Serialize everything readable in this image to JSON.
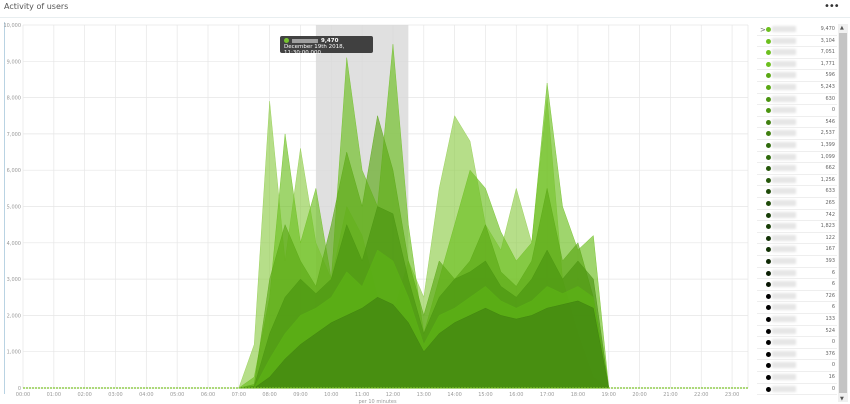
{
  "header": {
    "title": "Activity of users",
    "more_icon": "•••"
  },
  "tooltip": {
    "value": "9,470",
    "date": "December 19th 2018, 11:30:00.000",
    "color": "#6cbf1e"
  },
  "chart_data": {
    "type": "area",
    "xlabel": "per 10 minutes",
    "x_ticks": [
      "00:00",
      "01:00",
      "02:00",
      "03:00",
      "04:00",
      "05:00",
      "06:00",
      "07:00",
      "08:00",
      "09:00",
      "10:00",
      "11:00",
      "12:00",
      "13:00",
      "14:00",
      "15:00",
      "16:00",
      "17:00",
      "18:00",
      "19:00",
      "20:00",
      "21:00",
      "22:00",
      "23:00"
    ],
    "y_ticks": [
      "0",
      "1,000",
      "2,000",
      "3,000",
      "4,000",
      "5,000",
      "6,000",
      "7,000",
      "8,000",
      "9,000",
      "10,000"
    ],
    "ylim": [
      0,
      10000
    ],
    "grid": true,
    "selection": [
      "09:30",
      "12:30"
    ],
    "x": [
      "07:00",
      "07:30",
      "08:00",
      "08:30",
      "09:00",
      "09:30",
      "10:00",
      "10:30",
      "11:00",
      "11:30",
      "12:00",
      "12:30",
      "13:00",
      "13:30",
      "14:00",
      "14:30",
      "15:00",
      "15:30",
      "16:00",
      "16:30",
      "17:00",
      "17:30",
      "18:00",
      "18:30",
      "19:00"
    ],
    "series": [
      {
        "color": "#8fcc4a",
        "values": [
          0,
          1200,
          7900,
          3500,
          6600,
          4000,
          3000,
          5000,
          4200,
          2500,
          2000,
          3500,
          2500,
          5500,
          7500,
          6800,
          4500,
          3800,
          5500,
          4000,
          8000,
          3000,
          1500,
          300,
          0
        ]
      },
      {
        "color": "#6cbf1e",
        "values": [
          0,
          300,
          2500,
          7000,
          4000,
          5500,
          3000,
          9100,
          6000,
          5000,
          9470,
          4500,
          1500,
          3000,
          4500,
          6000,
          5500,
          4300,
          3500,
          4000,
          8400,
          5000,
          3800,
          4200,
          0
        ]
      },
      {
        "color": "#5aa814",
        "values": [
          0,
          100,
          3000,
          4500,
          3500,
          2800,
          4500,
          6500,
          5000,
          7500,
          6000,
          3500,
          2000,
          3500,
          3000,
          3500,
          4500,
          3200,
          2800,
          3500,
          5500,
          3500,
          4000,
          2500,
          0
        ]
      },
      {
        "color": "#4a9410",
        "values": [
          0,
          50,
          1500,
          2500,
          3000,
          2600,
          3000,
          4500,
          3500,
          5000,
          4800,
          3000,
          1500,
          2500,
          3000,
          3200,
          3500,
          2800,
          2500,
          3000,
          3800,
          3000,
          3500,
          3000,
          0
        ]
      },
      {
        "color": "#5db515",
        "values": [
          0,
          0,
          800,
          1500,
          2000,
          2200,
          2500,
          3200,
          2800,
          3800,
          3500,
          2500,
          1200,
          2000,
          2200,
          2500,
          2800,
          2400,
          2200,
          2400,
          2800,
          2600,
          2800,
          2500,
          0
        ]
      },
      {
        "color": "#3f7f0f",
        "values": [
          0,
          0,
          300,
          800,
          1200,
          1500,
          1800,
          2000,
          2200,
          2500,
          2300,
          1800,
          1000,
          1500,
          1800,
          2000,
          2200,
          2000,
          1900,
          2000,
          2200,
          2300,
          2400,
          2200,
          0
        ]
      }
    ]
  },
  "legend": [
    {
      "value": "9,470",
      "color": "#6cbf1e"
    },
    {
      "value": "3,104",
      "color": "#6cbf1e"
    },
    {
      "value": "7,051",
      "color": "#6cbf1e"
    },
    {
      "value": "1,771",
      "color": "#6cbf1e"
    },
    {
      "value": "596",
      "color": "#5aa814"
    },
    {
      "value": "5,243",
      "color": "#5aa814"
    },
    {
      "value": "630",
      "color": "#4a9410"
    },
    {
      "value": "0",
      "color": "#4a9410"
    },
    {
      "value": "546",
      "color": "#3f7f0f"
    },
    {
      "value": "2,537",
      "color": "#3f7f0f"
    },
    {
      "value": "1,399",
      "color": "#2f6a0c"
    },
    {
      "value": "1,099",
      "color": "#2f6a0c"
    },
    {
      "value": "662",
      "color": "#25570a"
    },
    {
      "value": "1,256",
      "color": "#25570a"
    },
    {
      "value": "633",
      "color": "#1e4a08"
    },
    {
      "value": "265",
      "color": "#1e4a08"
    },
    {
      "value": "742",
      "color": "#173d06"
    },
    {
      "value": "1,823",
      "color": "#173d06"
    },
    {
      "value": "122",
      "color": "#123205"
    },
    {
      "value": "167",
      "color": "#123205"
    },
    {
      "value": "393",
      "color": "#0e2804"
    },
    {
      "value": "6",
      "color": "#0a1e03"
    },
    {
      "value": "6",
      "color": "#061402"
    },
    {
      "value": "726",
      "color": "#000"
    },
    {
      "value": "6",
      "color": "#000"
    },
    {
      "value": "133",
      "color": "#000"
    },
    {
      "value": "524",
      "color": "#000"
    },
    {
      "value": "0",
      "color": "#000"
    },
    {
      "value": "376",
      "color": "#000"
    },
    {
      "value": "0",
      "color": "#000"
    },
    {
      "value": "16",
      "color": "#000"
    },
    {
      "value": "0",
      "color": "#000"
    }
  ]
}
